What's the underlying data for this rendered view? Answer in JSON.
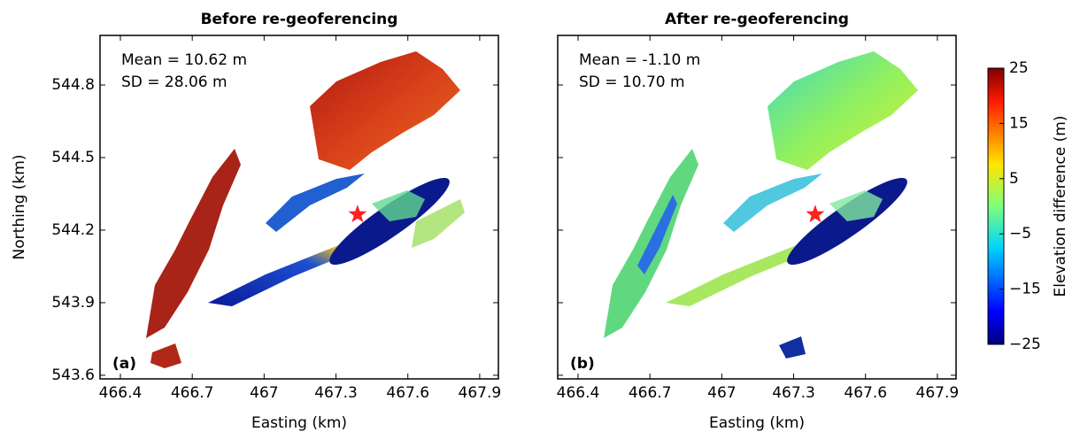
{
  "chart_data": [
    {
      "type": "raster",
      "title": "Before re-geoferencing",
      "xlabel": "Easting (km)",
      "ylabel": "Northing (km)",
      "xlim": [
        466.315,
        467.978
      ],
      "ylim": [
        543.585,
        545.005
      ],
      "xticks": [
        466.4,
        466.7,
        467.0,
        467.3,
        467.6,
        467.9
      ],
      "yticks": [
        543.6,
        543.9,
        544.2,
        544.5,
        544.8
      ],
      "ytick_labels": true,
      "annotations": [
        "Mean = 10.62 m",
        "SD = 28.06 m"
      ],
      "panel_label": "(a)",
      "marker": {
        "x": 467.39,
        "y": 544.265,
        "color": "#ff2020"
      }
    },
    {
      "type": "raster",
      "title": "After re-geoferencing",
      "xlabel": "Easting (km)",
      "xlim": [
        466.315,
        467.978
      ],
      "ylim": [
        543.585,
        545.005
      ],
      "xticks": [
        466.4,
        466.7,
        467.0,
        467.3,
        467.6,
        467.9
      ],
      "yticks": [
        543.6,
        543.9,
        544.2,
        544.5,
        544.8
      ],
      "ytick_labels": false,
      "annotations": [
        "Mean = -1.10 m",
        "SD = 10.70 m"
      ],
      "panel_label": "(b)",
      "marker": {
        "x": 467.39,
        "y": 544.265,
        "color": "#ff2020"
      }
    }
  ],
  "colorbar": {
    "label": "Elevation difference (m)",
    "colormap": "jet",
    "lim": [
      -25,
      25
    ],
    "ticks": [
      25,
      15,
      5,
      {
        "value": -5,
        "label": "−5"
      },
      {
        "value": -15,
        "label": "−15"
      },
      {
        "value": -25,
        "label": "−25"
      }
    ]
  }
}
